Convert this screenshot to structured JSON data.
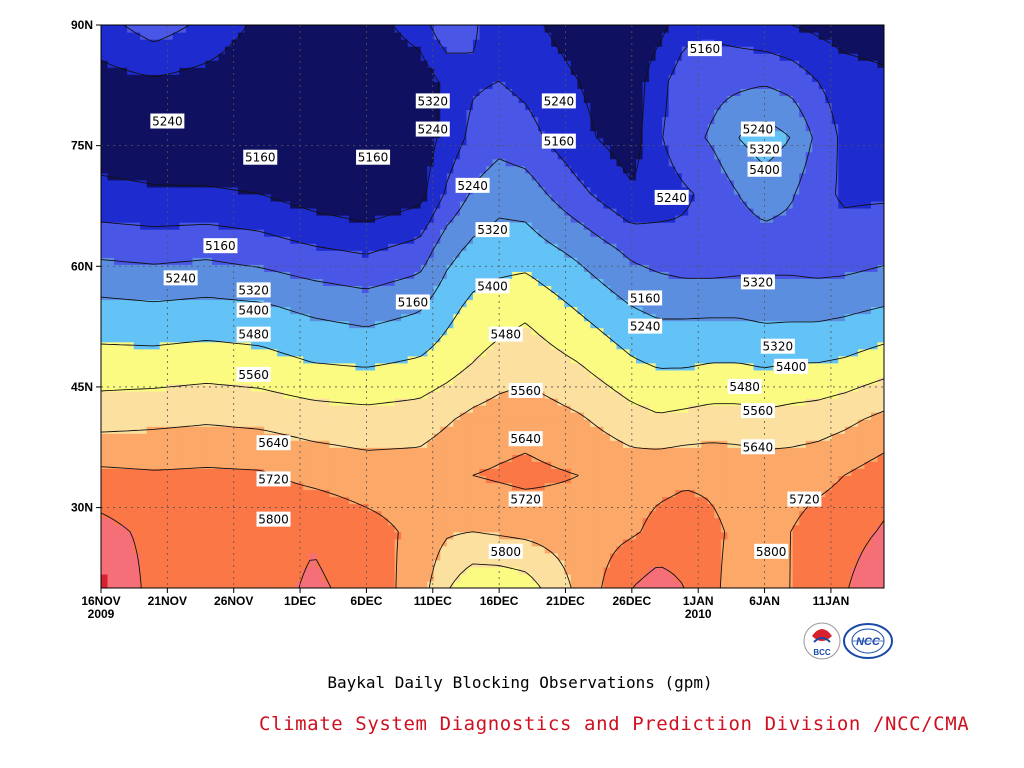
{
  "chart_data": {
    "type": "heatmap",
    "subtype": "time-latitude contour plot of 500hPa geopotential height",
    "title": "Baykal Daily Blocking Observations (gpm)",
    "credit": "Climate System Diagnostics and Prediction Division /NCC/CMA",
    "xlabel": "",
    "ylabel": "",
    "x_tick_labels": [
      "16NOV\n2009",
      "21NOV",
      "26NOV",
      "1DEC",
      "6DEC",
      "11DEC",
      "16DEC",
      "21DEC",
      "26DEC",
      "1JAN\n2010",
      "6JAN",
      "11JAN"
    ],
    "x_day_range": [
      0,
      59
    ],
    "y_tick_labels": [
      "30N",
      "45N",
      "60N",
      "75N",
      "90N"
    ],
    "y_ticks": [
      30,
      45,
      60,
      75,
      90
    ],
    "ylim": [
      20,
      90
    ],
    "grid": true,
    "contour_levels": [
      5160,
      5240,
      5320,
      5400,
      5480,
      5560,
      5640,
      5720,
      5800
    ],
    "fill_colors": [
      "#101060",
      "#1e2ccf",
      "#4a56e6",
      "#5c8ee0",
      "#63c3f6",
      "#fbfb82",
      "#fbe0a0",
      "#fba868",
      "#fb7746",
      "#f56f78",
      "#d8202e"
    ],
    "contour_labels": [
      {
        "day": 5,
        "lat": 78,
        "text": "5240"
      },
      {
        "day": 12,
        "lat": 73.5,
        "text": "5160"
      },
      {
        "day": 20.5,
        "lat": 73.5,
        "text": "5160"
      },
      {
        "day": 25,
        "lat": 80.5,
        "text": "5320"
      },
      {
        "day": 25,
        "lat": 77,
        "text": "5240"
      },
      {
        "day": 28,
        "lat": 70,
        "text": "5240"
      },
      {
        "day": 29.5,
        "lat": 64.5,
        "text": "5320"
      },
      {
        "day": 34.5,
        "lat": 80.5,
        "text": "5240"
      },
      {
        "day": 34.5,
        "lat": 75.5,
        "text": "5160"
      },
      {
        "day": 45.5,
        "lat": 87,
        "text": "5160"
      },
      {
        "day": 49.5,
        "lat": 77,
        "text": "5240"
      },
      {
        "day": 50,
        "lat": 74.5,
        "text": "5320"
      },
      {
        "day": 50,
        "lat": 72,
        "text": "5400"
      },
      {
        "day": 43,
        "lat": 68.5,
        "text": "5240"
      },
      {
        "day": 9,
        "lat": 62.5,
        "text": "5160"
      },
      {
        "day": 6,
        "lat": 58.5,
        "text": "5240"
      },
      {
        "day": 11.5,
        "lat": 57,
        "text": "5320"
      },
      {
        "day": 11.5,
        "lat": 54.5,
        "text": "5400"
      },
      {
        "day": 11.5,
        "lat": 51.5,
        "text": "5480"
      },
      {
        "day": 11.5,
        "lat": 46.5,
        "text": "5560"
      },
      {
        "day": 23.5,
        "lat": 55.5,
        "text": "5160"
      },
      {
        "day": 29.5,
        "lat": 57.5,
        "text": "5400"
      },
      {
        "day": 30.5,
        "lat": 51.5,
        "text": "5480"
      },
      {
        "day": 32,
        "lat": 44.5,
        "text": "5560"
      },
      {
        "day": 41,
        "lat": 56,
        "text": "5160"
      },
      {
        "day": 41,
        "lat": 52.5,
        "text": "5240"
      },
      {
        "day": 49.5,
        "lat": 58,
        "text": "5320"
      },
      {
        "day": 51,
        "lat": 50,
        "text": "5320"
      },
      {
        "day": 52,
        "lat": 47.5,
        "text": "5400"
      },
      {
        "day": 48.5,
        "lat": 45,
        "text": "5480"
      },
      {
        "day": 49.5,
        "lat": 42,
        "text": "5560"
      },
      {
        "day": 49.5,
        "lat": 37.5,
        "text": "5640"
      },
      {
        "day": 13,
        "lat": 38,
        "text": "5640"
      },
      {
        "day": 13,
        "lat": 33.5,
        "text": "5720"
      },
      {
        "day": 13,
        "lat": 28.5,
        "text": "5800"
      },
      {
        "day": 32,
        "lat": 38.5,
        "text": "5640"
      },
      {
        "day": 32,
        "lat": 31,
        "text": "5720"
      },
      {
        "day": 30.5,
        "lat": 24.5,
        "text": "5800"
      },
      {
        "day": 53,
        "lat": 31,
        "text": "5720"
      },
      {
        "day": 50.5,
        "lat": 24.5,
        "text": "5800"
      }
    ]
  },
  "logos": [
    {
      "name": "BCC",
      "text": "BCC",
      "color": "#1a4aa8"
    },
    {
      "name": "NCC",
      "text": "NCC",
      "color": "#1a4aa8"
    }
  ]
}
